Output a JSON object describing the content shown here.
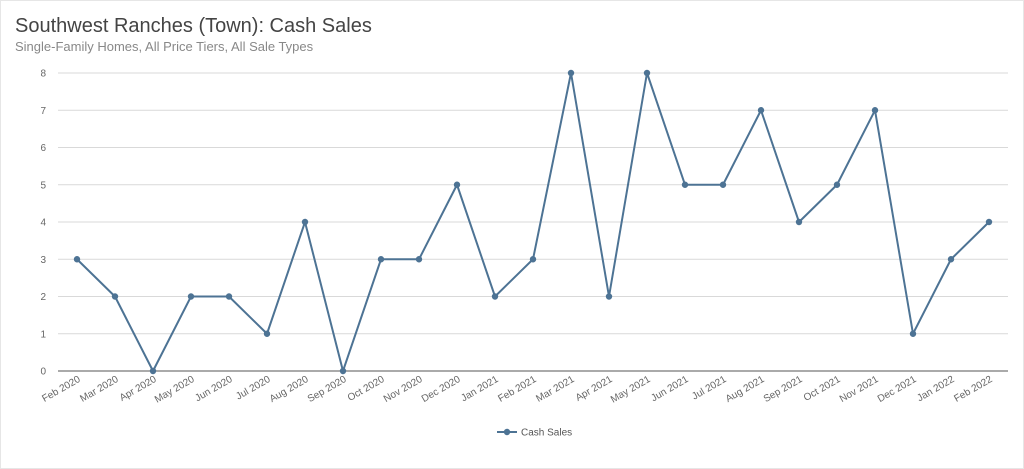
{
  "chart_data": {
    "type": "line",
    "title": "Southwest Ranches (Town): Cash Sales",
    "subtitle": "Single-Family Homes, All Price Tiers, All Sale Types",
    "xlabel": "",
    "ylabel": "",
    "ylim": [
      0,
      8
    ],
    "yticks": [
      0,
      1,
      2,
      3,
      4,
      5,
      6,
      7,
      8
    ],
    "grid": true,
    "legend_position": "bottom-center",
    "categories": [
      "Feb 2020",
      "Mar 2020",
      "Apr 2020",
      "May 2020",
      "Jun 2020",
      "Jul 2020",
      "Aug 2020",
      "Sep 2020",
      "Oct 2020",
      "Nov 2020",
      "Dec 2020",
      "Jan 2021",
      "Feb 2021",
      "Mar 2021",
      "Apr 2021",
      "May 2021",
      "Jun 2021",
      "Jul 2021",
      "Aug 2021",
      "Sep 2021",
      "Oct 2021",
      "Nov 2021",
      "Dec 2021",
      "Jan 2022",
      "Feb 2022"
    ],
    "series": [
      {
        "name": "Cash Sales",
        "color": "#4d7394",
        "values": [
          3,
          2,
          0,
          2,
          2,
          1,
          4,
          0,
          3,
          3,
          5,
          2,
          3,
          8,
          2,
          8,
          5,
          5,
          7,
          4,
          5,
          7,
          1,
          3,
          4
        ]
      }
    ]
  }
}
